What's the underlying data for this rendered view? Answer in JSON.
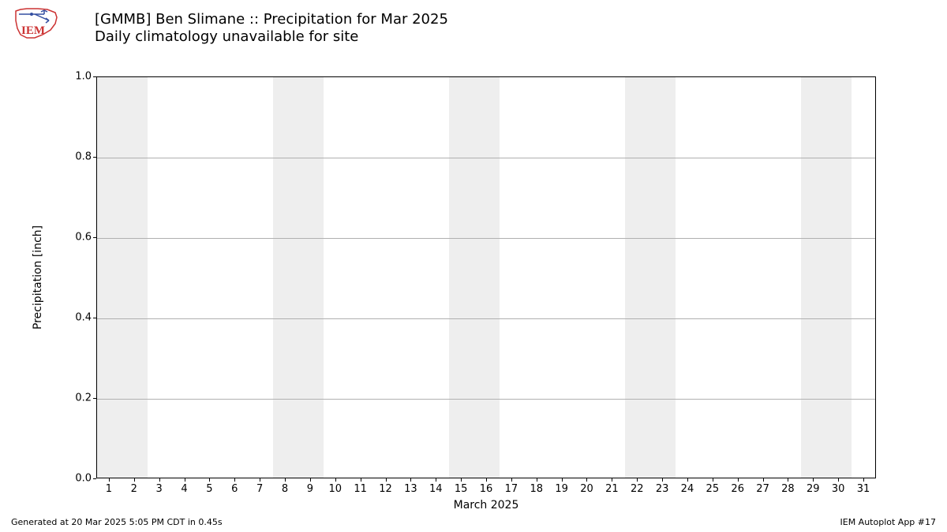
{
  "logo": {
    "text": "IEM",
    "outline_color": "#cc3333",
    "accent_color": "#344fa1"
  },
  "title_line1": "[GMMB] Ben Slimane :: Precipitation for Mar 2025",
  "title_line2": "Daily climatology unavailable for site",
  "chart": {
    "type": "bar",
    "ylabel": "Precipitation [inch]",
    "xlabel": "March 2025",
    "ylim": [
      0.0,
      1.0
    ],
    "yticks": [
      0.0,
      0.2,
      0.4,
      0.6,
      0.8,
      1.0
    ],
    "ytick_labels": [
      "0.0",
      "0.2",
      "0.4",
      "0.6",
      "0.8",
      "1.0"
    ],
    "xticks": [
      1,
      2,
      3,
      4,
      5,
      6,
      7,
      8,
      9,
      10,
      11,
      12,
      13,
      14,
      15,
      16,
      17,
      18,
      19,
      20,
      21,
      22,
      23,
      24,
      25,
      26,
      27,
      28,
      29,
      30,
      31
    ],
    "xlim": [
      0.5,
      31.5
    ],
    "weekend_bands": [
      {
        "start": 0.5,
        "end": 2.5
      },
      {
        "start": 7.5,
        "end": 9.5
      },
      {
        "start": 14.5,
        "end": 16.5
      },
      {
        "start": 21.5,
        "end": 23.5
      },
      {
        "start": 28.5,
        "end": 30.5
      }
    ],
    "weekend_color": "#eeeeee",
    "grid_color": "#b0b0b0",
    "background_color": "#ffffff",
    "border_color": "#000000",
    "tick_fontsize": 13,
    "label_fontsize": 14,
    "title_fontsize": 18,
    "values": []
  },
  "footer_left": "Generated at 20 Mar 2025 5:05 PM CDT in 0.45s",
  "footer_right": "IEM Autoplot App #17"
}
